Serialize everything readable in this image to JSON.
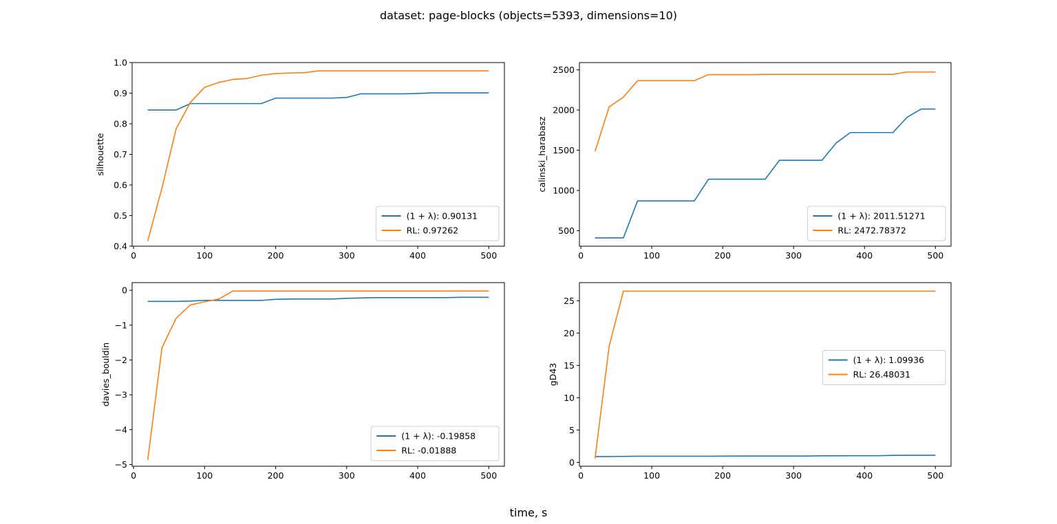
{
  "figure": {
    "suptitle": "dataset: page-blocks (objects=5393, dimensions=10)",
    "supxlabel": "time, s"
  },
  "colors": {
    "lambda": "#1f77b4",
    "rl": "#ff7f0e"
  },
  "chart_data": [
    {
      "type": "line",
      "ylabel": "silhouette",
      "xlim": [
        -2,
        522
      ],
      "ylim": [
        0.4,
        1.0
      ],
      "xticks": [
        0,
        100,
        200,
        300,
        400,
        500
      ],
      "yticks": [
        0.4,
        0.5,
        0.6,
        0.7,
        0.8,
        0.9,
        1.0
      ],
      "ytick_labels": [
        "0.4",
        "0.5",
        "0.6",
        "0.7",
        "0.8",
        "0.9",
        "1.0"
      ],
      "legend_position": "lower-right",
      "x": [
        20,
        40,
        60,
        80,
        100,
        120,
        140,
        160,
        180,
        200,
        220,
        240,
        260,
        280,
        300,
        320,
        340,
        360,
        380,
        400,
        420,
        440,
        460,
        480,
        500
      ],
      "series": [
        {
          "name": "(1 + λ): 0.90131",
          "color": "#1f77b4",
          "values": [
            0.845,
            0.845,
            0.845,
            0.866,
            0.866,
            0.866,
            0.866,
            0.866,
            0.866,
            0.884,
            0.884,
            0.884,
            0.884,
            0.884,
            0.886,
            0.898,
            0.898,
            0.898,
            0.898,
            0.899,
            0.901,
            0.901,
            0.901,
            0.901,
            0.901
          ]
        },
        {
          "name": "RL: 0.97262",
          "color": "#ff7f0e",
          "values": [
            0.417,
            0.59,
            0.784,
            0.87,
            0.919,
            0.935,
            0.945,
            0.948,
            0.959,
            0.964,
            0.966,
            0.967,
            0.973,
            0.973,
            0.973,
            0.973,
            0.973,
            0.973,
            0.973,
            0.973,
            0.973,
            0.973,
            0.973,
            0.973,
            0.973
          ]
        }
      ]
    },
    {
      "type": "line",
      "ylabel": "calinski_harabasz",
      "xlim": [
        -2,
        522
      ],
      "ylim": [
        307,
        2590
      ],
      "xticks": [
        0,
        100,
        200,
        300,
        400,
        500
      ],
      "yticks": [
        500,
        1000,
        1500,
        2000,
        2500
      ],
      "ytick_labels": [
        "500",
        "1000",
        "1500",
        "2000",
        "2500"
      ],
      "legend_position": "lower-right",
      "x": [
        20,
        40,
        60,
        80,
        100,
        120,
        140,
        160,
        180,
        200,
        220,
        240,
        260,
        280,
        300,
        320,
        340,
        360,
        380,
        400,
        420,
        440,
        460,
        480,
        500
      ],
      "series": [
        {
          "name": "(1 + λ): 2011.51271",
          "color": "#1f77b4",
          "values": [
            410,
            410,
            410,
            870,
            870,
            870,
            870,
            870,
            1140,
            1140,
            1140,
            1140,
            1140,
            1375,
            1375,
            1375,
            1375,
            1590,
            1720,
            1720,
            1720,
            1720,
            1910,
            2012,
            2012
          ]
        },
        {
          "name": "RL: 2472.78372",
          "color": "#ff7f0e",
          "values": [
            1485,
            2040,
            2160,
            2365,
            2365,
            2365,
            2365,
            2365,
            2440,
            2440,
            2440,
            2440,
            2443,
            2443,
            2443,
            2443,
            2443,
            2443,
            2443,
            2443,
            2443,
            2443,
            2473,
            2473,
            2473
          ]
        }
      ]
    },
    {
      "type": "line",
      "ylabel": "davies_bouldin",
      "xlim": [
        -2,
        522
      ],
      "ylim": [
        -5.05,
        0.22
      ],
      "xticks": [
        0,
        100,
        200,
        300,
        400,
        500
      ],
      "yticks": [
        -5,
        -4,
        -3,
        -2,
        -1,
        0
      ],
      "ytick_labels": [
        "−5",
        "−4",
        "−3",
        "−2",
        "−1",
        "0"
      ],
      "legend_position": "lower-right",
      "x": [
        20,
        40,
        60,
        80,
        100,
        120,
        140,
        160,
        180,
        200,
        220,
        240,
        260,
        280,
        300,
        320,
        340,
        360,
        380,
        400,
        420,
        440,
        460,
        480,
        500
      ],
      "series": [
        {
          "name": "(1 + λ): -0.19858",
          "color": "#1f77b4",
          "values": [
            -0.32,
            -0.32,
            -0.32,
            -0.31,
            -0.29,
            -0.29,
            -0.29,
            -0.29,
            -0.29,
            -0.26,
            -0.25,
            -0.25,
            -0.25,
            -0.25,
            -0.23,
            -0.22,
            -0.21,
            -0.21,
            -0.21,
            -0.21,
            -0.21,
            -0.21,
            -0.2,
            -0.2,
            -0.2
          ]
        },
        {
          "name": "RL: -0.01888",
          "color": "#ff7f0e",
          "values": [
            -4.87,
            -1.65,
            -0.8,
            -0.42,
            -0.33,
            -0.25,
            -0.02,
            -0.02,
            -0.02,
            -0.02,
            -0.02,
            -0.02,
            -0.02,
            -0.02,
            -0.02,
            -0.02,
            -0.02,
            -0.02,
            -0.02,
            -0.02,
            -0.02,
            -0.02,
            -0.02,
            -0.02,
            -0.02
          ]
        }
      ]
    },
    {
      "type": "line",
      "ylabel": "gD43",
      "xlim": [
        -2,
        522
      ],
      "ylim": [
        -0.6,
        27.8
      ],
      "xticks": [
        0,
        100,
        200,
        300,
        400,
        500
      ],
      "yticks": [
        0,
        5,
        10,
        15,
        20,
        25
      ],
      "ytick_labels": [
        "0",
        "5",
        "10",
        "15",
        "20",
        "25"
      ],
      "legend_position": "center-right",
      "x": [
        20,
        40,
        60,
        80,
        100,
        120,
        140,
        160,
        180,
        200,
        220,
        240,
        260,
        280,
        300,
        320,
        340,
        360,
        380,
        400,
        420,
        440,
        460,
        480,
        500
      ],
      "series": [
        {
          "name": "(1 + λ): 1.09936",
          "color": "#1f77b4",
          "values": [
            0.9,
            0.9,
            0.92,
            0.95,
            0.95,
            0.95,
            0.95,
            0.95,
            0.95,
            0.96,
            0.98,
            0.98,
            0.98,
            0.98,
            0.98,
            0.98,
            1.02,
            1.02,
            1.03,
            1.03,
            1.03,
            1.08,
            1.1,
            1.1,
            1.1
          ]
        },
        {
          "name": "RL: 26.48031",
          "color": "#ff7f0e",
          "values": [
            0.6,
            18.0,
            26.48,
            26.48,
            26.48,
            26.48,
            26.48,
            26.48,
            26.48,
            26.48,
            26.48,
            26.48,
            26.48,
            26.48,
            26.48,
            26.48,
            26.48,
            26.48,
            26.48,
            26.48,
            26.48,
            26.48,
            26.48,
            26.48,
            26.48
          ]
        }
      ]
    }
  ]
}
